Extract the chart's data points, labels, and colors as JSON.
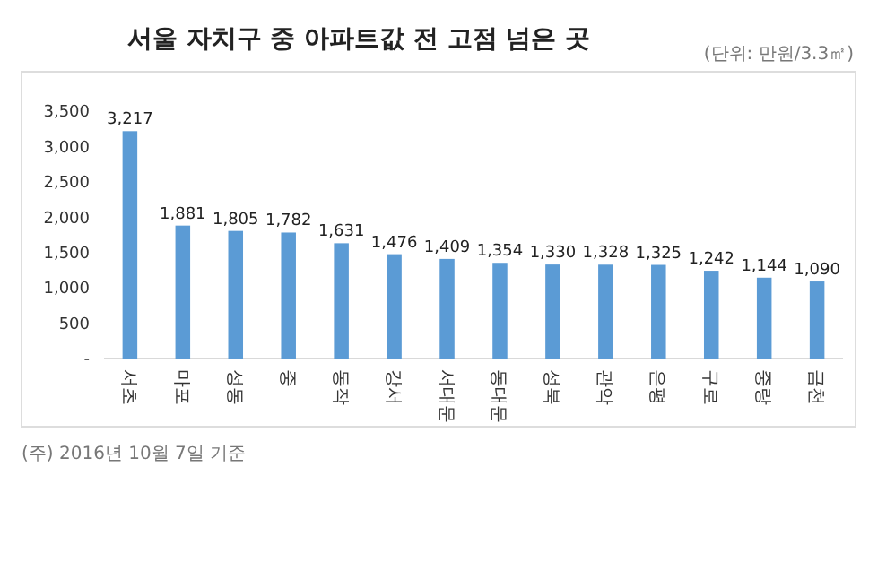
{
  "chart_data": {
    "type": "bar",
    "title": "서울 자치구 중 아파트값 전 고점 넘은 곳",
    "subtitle": "(단위: 만원/3.3㎡)",
    "categories": [
      "서초",
      "마포",
      "성동",
      "중",
      "동작",
      "강서",
      "서대문",
      "동대문",
      "성북",
      "관악",
      "은평",
      "구로",
      "중랑",
      "금천"
    ],
    "values": [
      3217,
      1881,
      1805,
      1782,
      1631,
      1476,
      1409,
      1354,
      1330,
      1328,
      1325,
      1242,
      1144,
      1090
    ],
    "color": "#5b9bd5",
    "ylim": [
      0,
      3500
    ],
    "yticks": [
      {
        "value": 0,
        "label": "-"
      },
      {
        "value": 500,
        "label": "500"
      },
      {
        "value": 1000,
        "label": "1,000"
      },
      {
        "value": 1500,
        "label": "1,500"
      },
      {
        "value": 2000,
        "label": "2,000"
      },
      {
        "value": 2500,
        "label": "2,500"
      },
      {
        "value": 3000,
        "label": "3,000"
      },
      {
        "value": 3500,
        "label": "3,500"
      }
    ],
    "value_labels": [
      "3,217",
      "1,881",
      "1,805",
      "1,782",
      "1,631",
      "1,476",
      "1,409",
      "1,354",
      "1,330",
      "1,328",
      "1,325",
      "1,242",
      "1,144",
      "1,090"
    ],
    "grid": false,
    "annotations": [
      "(주) 2016년 10월 7일 기준"
    ]
  }
}
